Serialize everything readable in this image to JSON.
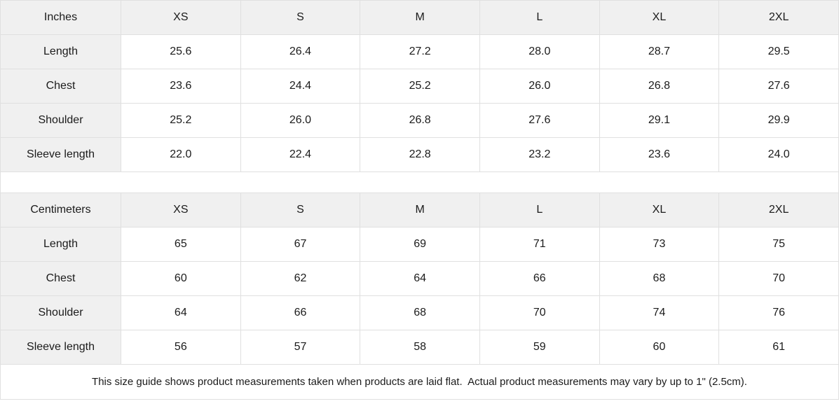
{
  "inches_table": {
    "header": [
      "Inches",
      "XS",
      "S",
      "M",
      "L",
      "XL",
      "2XL"
    ],
    "rows": [
      {
        "label": "Length",
        "values": [
          "25.6",
          "26.4",
          "27.2",
          "28.0",
          "28.7",
          "29.5"
        ]
      },
      {
        "label": "Chest",
        "values": [
          "23.6",
          "24.4",
          "25.2",
          "26.0",
          "26.8",
          "27.6"
        ]
      },
      {
        "label": "Shoulder",
        "values": [
          "25.2",
          "26.0",
          "26.8",
          "27.6",
          "29.1",
          "29.9"
        ]
      },
      {
        "label": "Sleeve length",
        "values": [
          "22.0",
          "22.4",
          "22.8",
          "23.2",
          "23.6",
          "24.0"
        ]
      }
    ]
  },
  "cm_table": {
    "header": [
      "Centimeters",
      "XS",
      "S",
      "M",
      "L",
      "XL",
      "2XL"
    ],
    "rows": [
      {
        "label": "Length",
        "values": [
          "65",
          "67",
          "69",
          "71",
          "73",
          "75"
        ]
      },
      {
        "label": "Chest",
        "values": [
          "60",
          "62",
          "64",
          "66",
          "68",
          "70"
        ]
      },
      {
        "label": "Shoulder",
        "values": [
          "64",
          "66",
          "68",
          "70",
          "74",
          "76"
        ]
      },
      {
        "label": "Sleeve length",
        "values": [
          "56",
          "57",
          "58",
          "59",
          "60",
          "61"
        ]
      }
    ]
  },
  "footer": {
    "note": "This size guide shows product measurements taken when products are laid flat.  Actual product measurements may vary by up to 1\" (2.5cm)."
  },
  "colors": {
    "header_bg": "#f0f0f0",
    "border": "#e0e0e0",
    "text": "#1b1b1b",
    "background": "#ffffff"
  }
}
